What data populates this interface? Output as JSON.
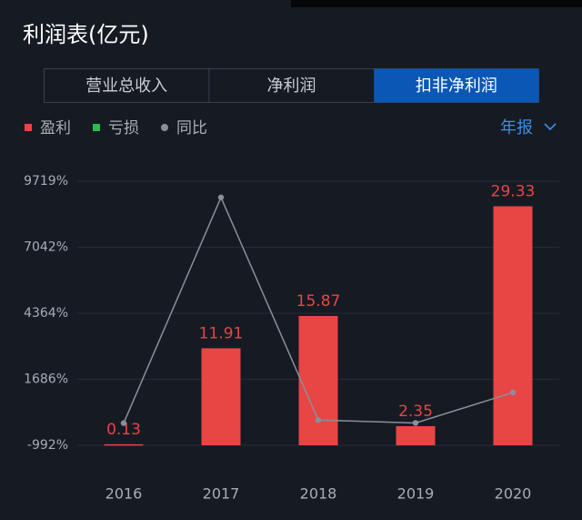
{
  "tabs": [
    {
      "label": "营业总收入",
      "active": false
    },
    {
      "label": "净利润",
      "active": false
    },
    {
      "label": "扣非净利润",
      "active": true
    }
  ],
  "period": "年报",
  "chart_data": {
    "type": "bar",
    "title": "利润表(亿元)",
    "categories": [
      "2016",
      "2017",
      "2018",
      "2019",
      "2020"
    ],
    "series": [
      {
        "name": "盈利",
        "type": "bar",
        "axis": "y2",
        "color": "#e84545",
        "values": [
          0.13,
          11.91,
          15.87,
          2.35,
          29.33
        ]
      },
      {
        "name": "亏损",
        "type": "bar",
        "axis": "y2",
        "color": "#2fb84f",
        "values": [
          null,
          null,
          null,
          null,
          null
        ]
      },
      {
        "name": "同比",
        "type": "line",
        "color": "#8a8f9c",
        "values": [
          -90,
          9062,
          33,
          -85,
          1148
        ]
      }
    ],
    "ylim": [
      -992,
      9719
    ],
    "yticks": [
      {
        "value": -992,
        "label": "-992%"
      },
      {
        "value": 1686,
        "label": "1686%"
      },
      {
        "value": 4364,
        "label": "4364%"
      },
      {
        "value": 7042,
        "label": "7042%"
      },
      {
        "value": 9719,
        "label": "9719%"
      }
    ],
    "y2lim": [
      0,
      32.4
    ],
    "grid": true
  }
}
